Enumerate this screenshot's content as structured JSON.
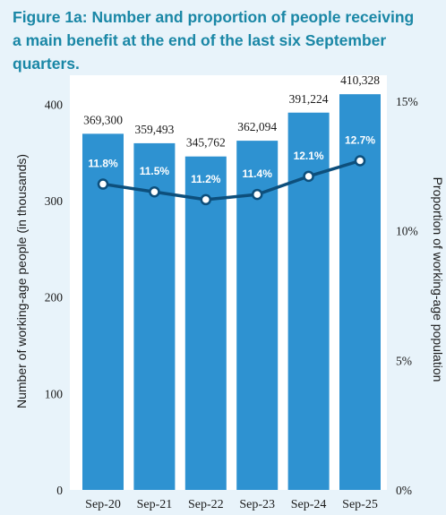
{
  "title": {
    "lines": [
      "Figure 1a: Number and proportion of people receiving",
      "a main benefit at the end of the last six September",
      "quarters."
    ]
  },
  "colors": {
    "background": "#e8f3fa",
    "bar": "#2e92d1",
    "line": "#0d4f7c",
    "title": "#1a87a6"
  },
  "chart_data": {
    "type": "bar",
    "categories": [
      "Sep-20",
      "Sep-21",
      "Sep-22",
      "Sep-23",
      "Sep-24",
      "Sep-25"
    ],
    "series": [
      {
        "type": "bar",
        "axis": "left",
        "values": [
          369300,
          359493,
          345762,
          362094,
          391224,
          410328
        ],
        "labels": [
          "369,300",
          "359,493",
          "345,762",
          "362,094",
          "391,224",
          "410,328"
        ]
      },
      {
        "type": "line",
        "axis": "right",
        "values": [
          11.8,
          11.5,
          11.2,
          11.4,
          12.1,
          12.7
        ],
        "labels": [
          "11.8%",
          "11.5%",
          "11.2%",
          "11.4%",
          "12.1%",
          "12.7%"
        ]
      }
    ],
    "ylabel_left": "Number of working-age people (in thousands)",
    "ylabel_right": "Proportion of working-age population",
    "ylim_left": [
      0,
      430
    ],
    "yticks_left": [
      "0",
      "100",
      "200",
      "300",
      "400"
    ],
    "yticks_left_values": [
      0,
      100,
      200,
      300,
      400
    ],
    "ylim_right": [
      0,
      16
    ],
    "yticks_right": [
      "0%",
      "5%",
      "10%",
      "15%"
    ],
    "yticks_right_values": [
      0,
      5,
      10,
      15
    ],
    "grid": false,
    "legend": "none"
  }
}
